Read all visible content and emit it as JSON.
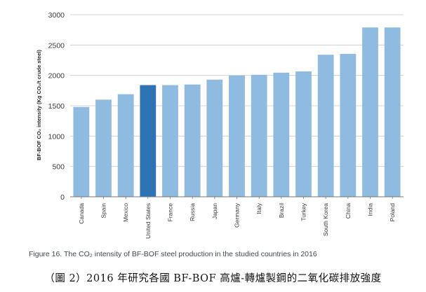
{
  "chart_data": {
    "type": "bar",
    "title": "",
    "ylabel": "BF-BOF CO₂ intensity (Kg CO₂/t crude steel)",
    "xlabel": "",
    "ylim": [
      0,
      3000
    ],
    "yticks": [
      0,
      500,
      1000,
      1500,
      2000,
      2500,
      3000
    ],
    "grid": true,
    "categories": [
      "Canada",
      "Spain",
      "Mexico",
      "United States",
      "France",
      "Russia",
      "Japan",
      "Germany",
      "Italy",
      "Brazil",
      "Turkey",
      "South Korea",
      "China",
      "India",
      "Poland"
    ],
    "values": [
      1480,
      1600,
      1690,
      1840,
      1840,
      1850,
      1930,
      2000,
      2010,
      2045,
      2065,
      2340,
      2355,
      2790,
      2790
    ],
    "highlight": "United States",
    "colors": {
      "bar": "#8fbbe1",
      "highlight": "#2e74b5",
      "grid": "#c9c9c9",
      "axis": "#777777"
    }
  },
  "caption": "Figure 16. The CO₂ intensity of BF-BOF steel production in the studied countries in 2016",
  "subcaption": "（圖 2）2016 年研究各國 BF-BOF 高爐-轉爐製鋼的二氧化碳排放強度"
}
